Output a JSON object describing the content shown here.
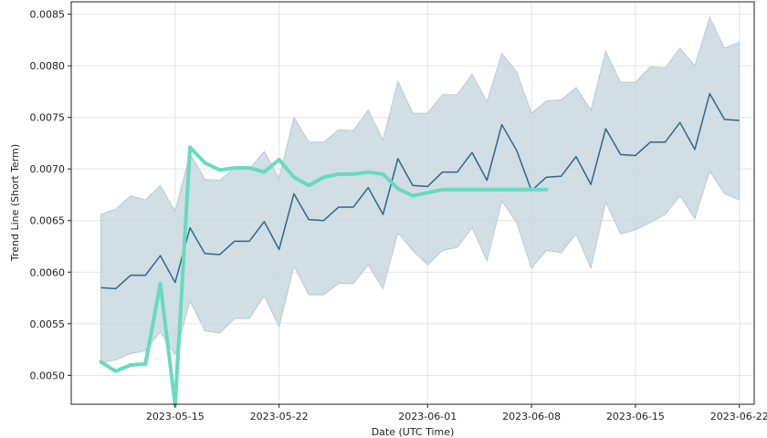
{
  "chart_data": {
    "type": "line",
    "title": "",
    "xlabel": "Date (UTC Time)",
    "ylabel": "Trend Line (Short Term)",
    "xlim": [
      "2023-05-08",
      "2023-06-23"
    ],
    "ylim": [
      0.00472,
      0.00862
    ],
    "grid": true,
    "legend": "none",
    "colors": {
      "trend": "#2a6a8a",
      "band": "#c9d8df",
      "band_edge": "#b9cbd3",
      "highlight": "#66dbbf"
    },
    "x_ticks": [
      "2023-05-15",
      "2023-05-22",
      "2023-06-01",
      "2023-06-08",
      "2023-06-15",
      "2023-06-22"
    ],
    "y_ticks": [
      "0.0050",
      "0.0055",
      "0.0060",
      "0.0065",
      "0.0070",
      "0.0075",
      "0.0080",
      "0.0085"
    ],
    "series": [
      {
        "role": "trend",
        "x": [
          "2023-05-10",
          "2023-05-11",
          "2023-05-12",
          "2023-05-13",
          "2023-05-14",
          "2023-05-15",
          "2023-05-16",
          "2023-05-17",
          "2023-05-18",
          "2023-05-19",
          "2023-05-20",
          "2023-05-21",
          "2023-05-22",
          "2023-05-23",
          "2023-05-24",
          "2023-05-25",
          "2023-05-26",
          "2023-05-27",
          "2023-05-28",
          "2023-05-29",
          "2023-05-30",
          "2023-05-31",
          "2023-06-01",
          "2023-06-02",
          "2023-06-03",
          "2023-06-04",
          "2023-06-05",
          "2023-06-06",
          "2023-06-07",
          "2023-06-08",
          "2023-06-09",
          "2023-06-10",
          "2023-06-11",
          "2023-06-12",
          "2023-06-13",
          "2023-06-14",
          "2023-06-15",
          "2023-06-16",
          "2023-06-17",
          "2023-06-18",
          "2023-06-19",
          "2023-06-20",
          "2023-06-21",
          "2023-06-22"
        ],
        "values": [
          0.00585,
          0.00584,
          0.00597,
          0.00597,
          0.00616,
          0.0059,
          0.00643,
          0.00618,
          0.00617,
          0.0063,
          0.0063,
          0.00649,
          0.00622,
          0.00676,
          0.00651,
          0.0065,
          0.00663,
          0.00663,
          0.00682,
          0.00656,
          0.0071,
          0.00684,
          0.00683,
          0.00697,
          0.00697,
          0.00716,
          0.00689,
          0.00743,
          0.00718,
          0.00679,
          0.00692,
          0.00693,
          0.00712,
          0.00685,
          0.00739,
          0.00714,
          0.00713,
          0.00726,
          0.00726,
          0.00745,
          0.00719,
          0.00773,
          0.00748,
          0.00747
        ]
      },
      {
        "role": "band_upper",
        "x": [
          "2023-05-10",
          "2023-05-11",
          "2023-05-12",
          "2023-05-13",
          "2023-05-14",
          "2023-05-15",
          "2023-05-16",
          "2023-05-17",
          "2023-05-18",
          "2023-05-19",
          "2023-05-20",
          "2023-05-21",
          "2023-05-22",
          "2023-05-23",
          "2023-05-24",
          "2023-05-25",
          "2023-05-26",
          "2023-05-27",
          "2023-05-28",
          "2023-05-29",
          "2023-05-30",
          "2023-05-31",
          "2023-06-01",
          "2023-06-02",
          "2023-06-03",
          "2023-06-04",
          "2023-06-05",
          "2023-06-06",
          "2023-06-07",
          "2023-06-08",
          "2023-06-09",
          "2023-06-10",
          "2023-06-11",
          "2023-06-12",
          "2023-06-13",
          "2023-06-14",
          "2023-06-15",
          "2023-06-16",
          "2023-06-17",
          "2023-06-18",
          "2023-06-19",
          "2023-06-20",
          "2023-06-21",
          "2023-06-22"
        ],
        "values": [
          0.00656,
          0.00661,
          0.00674,
          0.0067,
          0.00684,
          0.00659,
          0.00715,
          0.0069,
          0.00689,
          0.00701,
          0.007,
          0.00717,
          0.00691,
          0.0075,
          0.00726,
          0.00726,
          0.00738,
          0.00737,
          0.00757,
          0.00728,
          0.00785,
          0.00754,
          0.00754,
          0.00772,
          0.00772,
          0.00792,
          0.00765,
          0.00812,
          0.00794,
          0.00754,
          0.00766,
          0.00767,
          0.00779,
          0.00757,
          0.00814,
          0.00784,
          0.00784,
          0.00799,
          0.00798,
          0.00817,
          0.008,
          0.00847,
          0.00817,
          0.00823
        ]
      },
      {
        "role": "band_lower",
        "x": [
          "2023-05-10",
          "2023-05-11",
          "2023-05-12",
          "2023-05-13",
          "2023-05-14",
          "2023-05-15",
          "2023-05-16",
          "2023-05-17",
          "2023-05-18",
          "2023-05-19",
          "2023-05-20",
          "2023-05-21",
          "2023-05-22",
          "2023-05-23",
          "2023-05-24",
          "2023-05-25",
          "2023-05-26",
          "2023-05-27",
          "2023-05-28",
          "2023-05-29",
          "2023-05-30",
          "2023-05-31",
          "2023-06-01",
          "2023-06-02",
          "2023-06-03",
          "2023-06-04",
          "2023-06-05",
          "2023-06-06",
          "2023-06-07",
          "2023-06-08",
          "2023-06-09",
          "2023-06-10",
          "2023-06-11",
          "2023-06-12",
          "2023-06-13",
          "2023-06-14",
          "2023-06-15",
          "2023-06-16",
          "2023-06-17",
          "2023-06-18",
          "2023-06-19",
          "2023-06-20",
          "2023-06-21",
          "2023-06-22"
        ],
        "values": [
          0.00512,
          0.00515,
          0.00521,
          0.00524,
          0.00542,
          0.0052,
          0.00572,
          0.00543,
          0.00541,
          0.00555,
          0.00555,
          0.00577,
          0.00547,
          0.00606,
          0.00578,
          0.00578,
          0.00589,
          0.00589,
          0.00607,
          0.00584,
          0.00638,
          0.00621,
          0.00607,
          0.00621,
          0.00624,
          0.00643,
          0.00611,
          0.00669,
          0.00648,
          0.00604,
          0.00621,
          0.00619,
          0.00637,
          0.00604,
          0.00668,
          0.00637,
          0.00641,
          0.00648,
          0.00656,
          0.00674,
          0.00652,
          0.00698,
          0.00676,
          0.0067
        ]
      },
      {
        "role": "highlight",
        "x": [
          "2023-05-10",
          "2023-05-11",
          "2023-05-12",
          "2023-05-13",
          "2023-05-14",
          "2023-05-15",
          "2023-05-16",
          "2023-05-17",
          "2023-05-18",
          "2023-05-19",
          "2023-05-20",
          "2023-05-21",
          "2023-05-22",
          "2023-05-23",
          "2023-05-24",
          "2023-05-25",
          "2023-05-26",
          "2023-05-27",
          "2023-05-28",
          "2023-05-29",
          "2023-05-30",
          "2023-05-31",
          "2023-06-01",
          "2023-06-02",
          "2023-06-03",
          "2023-06-04",
          "2023-06-05",
          "2023-06-06",
          "2023-06-07",
          "2023-06-08",
          "2023-06-09"
        ],
        "values": [
          0.00513,
          0.00504,
          0.0051,
          0.00511,
          0.00589,
          0.00471,
          0.00721,
          0.00706,
          0.00699,
          0.00701,
          0.00701,
          0.00697,
          0.00709,
          0.00692,
          0.00684,
          0.00692,
          0.00695,
          0.00695,
          0.00697,
          0.00695,
          0.00681,
          0.00674,
          0.00677,
          0.0068,
          0.0068,
          0.0068,
          0.0068,
          0.0068,
          0.0068,
          0.0068,
          0.0068
        ]
      }
    ]
  }
}
